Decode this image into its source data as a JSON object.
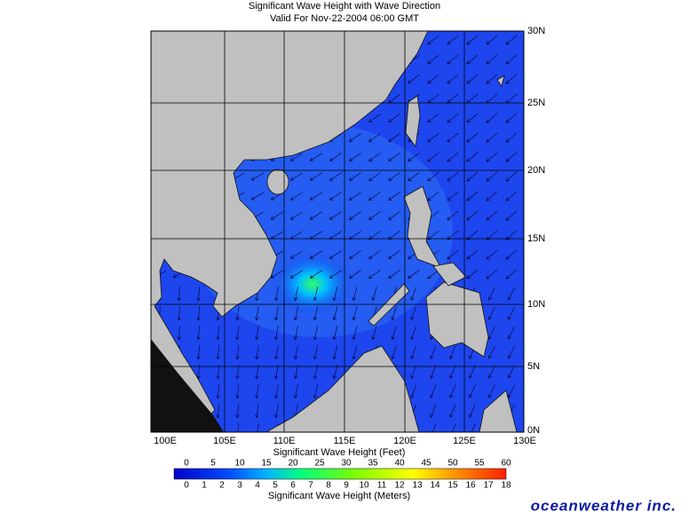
{
  "header": {
    "title": "Significant Wave Height with Wave Direction",
    "subtitle": "Valid For Nov-22-2004 06:00 GMT"
  },
  "map": {
    "lon_labels": [
      "100E",
      "105E",
      "110E",
      "115E",
      "120E",
      "125E",
      "130E"
    ],
    "lat_labels": [
      "30N",
      "25N",
      "20N",
      "15N",
      "10N",
      "5N",
      "0N"
    ]
  },
  "legend": {
    "feet_title": "Significant Wave Height (Feet)",
    "feet_labels": [
      0,
      5,
      10,
      15,
      20,
      25,
      30,
      35,
      40,
      45,
      50,
      55,
      60
    ],
    "meters_title": "Significant Wave Height (Meters)",
    "meters_labels": [
      0,
      1,
      2,
      3,
      4,
      5,
      6,
      7,
      8,
      9,
      10,
      11,
      12,
      13,
      14,
      15,
      16,
      17,
      18
    ]
  },
  "brand": "oceanweather inc."
}
